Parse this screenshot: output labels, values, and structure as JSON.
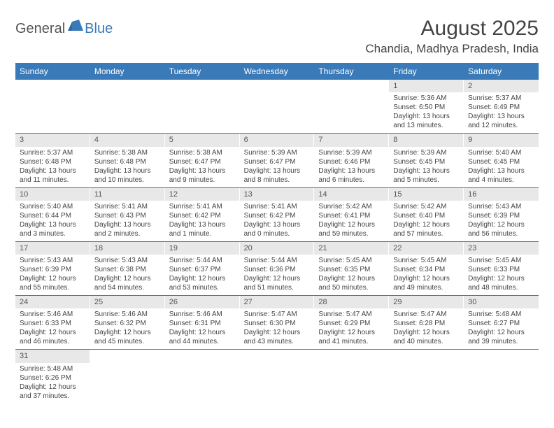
{
  "logo": {
    "general": "General",
    "blue": "Blue"
  },
  "title": "August 2025",
  "location": "Chandia, Madhya Pradesh, India",
  "colors": {
    "header_bg": "#3a7ab8",
    "header_text": "#ffffff",
    "daynum_bg": "#e8e8e8",
    "text": "#444444",
    "row_border": "#3a7ab8"
  },
  "day_headers": [
    "Sunday",
    "Monday",
    "Tuesday",
    "Wednesday",
    "Thursday",
    "Friday",
    "Saturday"
  ],
  "weeks": [
    [
      {
        "n": "",
        "sunrise": "",
        "sunset": "",
        "daylight": ""
      },
      {
        "n": "",
        "sunrise": "",
        "sunset": "",
        "daylight": ""
      },
      {
        "n": "",
        "sunrise": "",
        "sunset": "",
        "daylight": ""
      },
      {
        "n": "",
        "sunrise": "",
        "sunset": "",
        "daylight": ""
      },
      {
        "n": "",
        "sunrise": "",
        "sunset": "",
        "daylight": ""
      },
      {
        "n": "1",
        "sunrise": "Sunrise: 5:36 AM",
        "sunset": "Sunset: 6:50 PM",
        "daylight": "Daylight: 13 hours and 13 minutes."
      },
      {
        "n": "2",
        "sunrise": "Sunrise: 5:37 AM",
        "sunset": "Sunset: 6:49 PM",
        "daylight": "Daylight: 13 hours and 12 minutes."
      }
    ],
    [
      {
        "n": "3",
        "sunrise": "Sunrise: 5:37 AM",
        "sunset": "Sunset: 6:48 PM",
        "daylight": "Daylight: 13 hours and 11 minutes."
      },
      {
        "n": "4",
        "sunrise": "Sunrise: 5:38 AM",
        "sunset": "Sunset: 6:48 PM",
        "daylight": "Daylight: 13 hours and 10 minutes."
      },
      {
        "n": "5",
        "sunrise": "Sunrise: 5:38 AM",
        "sunset": "Sunset: 6:47 PM",
        "daylight": "Daylight: 13 hours and 9 minutes."
      },
      {
        "n": "6",
        "sunrise": "Sunrise: 5:39 AM",
        "sunset": "Sunset: 6:47 PM",
        "daylight": "Daylight: 13 hours and 8 minutes."
      },
      {
        "n": "7",
        "sunrise": "Sunrise: 5:39 AM",
        "sunset": "Sunset: 6:46 PM",
        "daylight": "Daylight: 13 hours and 6 minutes."
      },
      {
        "n": "8",
        "sunrise": "Sunrise: 5:39 AM",
        "sunset": "Sunset: 6:45 PM",
        "daylight": "Daylight: 13 hours and 5 minutes."
      },
      {
        "n": "9",
        "sunrise": "Sunrise: 5:40 AM",
        "sunset": "Sunset: 6:45 PM",
        "daylight": "Daylight: 13 hours and 4 minutes."
      }
    ],
    [
      {
        "n": "10",
        "sunrise": "Sunrise: 5:40 AM",
        "sunset": "Sunset: 6:44 PM",
        "daylight": "Daylight: 13 hours and 3 minutes."
      },
      {
        "n": "11",
        "sunrise": "Sunrise: 5:41 AM",
        "sunset": "Sunset: 6:43 PM",
        "daylight": "Daylight: 13 hours and 2 minutes."
      },
      {
        "n": "12",
        "sunrise": "Sunrise: 5:41 AM",
        "sunset": "Sunset: 6:42 PM",
        "daylight": "Daylight: 13 hours and 1 minute."
      },
      {
        "n": "13",
        "sunrise": "Sunrise: 5:41 AM",
        "sunset": "Sunset: 6:42 PM",
        "daylight": "Daylight: 13 hours and 0 minutes."
      },
      {
        "n": "14",
        "sunrise": "Sunrise: 5:42 AM",
        "sunset": "Sunset: 6:41 PM",
        "daylight": "Daylight: 12 hours and 59 minutes."
      },
      {
        "n": "15",
        "sunrise": "Sunrise: 5:42 AM",
        "sunset": "Sunset: 6:40 PM",
        "daylight": "Daylight: 12 hours and 57 minutes."
      },
      {
        "n": "16",
        "sunrise": "Sunrise: 5:43 AM",
        "sunset": "Sunset: 6:39 PM",
        "daylight": "Daylight: 12 hours and 56 minutes."
      }
    ],
    [
      {
        "n": "17",
        "sunrise": "Sunrise: 5:43 AM",
        "sunset": "Sunset: 6:39 PM",
        "daylight": "Daylight: 12 hours and 55 minutes."
      },
      {
        "n": "18",
        "sunrise": "Sunrise: 5:43 AM",
        "sunset": "Sunset: 6:38 PM",
        "daylight": "Daylight: 12 hours and 54 minutes."
      },
      {
        "n": "19",
        "sunrise": "Sunrise: 5:44 AM",
        "sunset": "Sunset: 6:37 PM",
        "daylight": "Daylight: 12 hours and 53 minutes."
      },
      {
        "n": "20",
        "sunrise": "Sunrise: 5:44 AM",
        "sunset": "Sunset: 6:36 PM",
        "daylight": "Daylight: 12 hours and 51 minutes."
      },
      {
        "n": "21",
        "sunrise": "Sunrise: 5:45 AM",
        "sunset": "Sunset: 6:35 PM",
        "daylight": "Daylight: 12 hours and 50 minutes."
      },
      {
        "n": "22",
        "sunrise": "Sunrise: 5:45 AM",
        "sunset": "Sunset: 6:34 PM",
        "daylight": "Daylight: 12 hours and 49 minutes."
      },
      {
        "n": "23",
        "sunrise": "Sunrise: 5:45 AM",
        "sunset": "Sunset: 6:33 PM",
        "daylight": "Daylight: 12 hours and 48 minutes."
      }
    ],
    [
      {
        "n": "24",
        "sunrise": "Sunrise: 5:46 AM",
        "sunset": "Sunset: 6:33 PM",
        "daylight": "Daylight: 12 hours and 46 minutes."
      },
      {
        "n": "25",
        "sunrise": "Sunrise: 5:46 AM",
        "sunset": "Sunset: 6:32 PM",
        "daylight": "Daylight: 12 hours and 45 minutes."
      },
      {
        "n": "26",
        "sunrise": "Sunrise: 5:46 AM",
        "sunset": "Sunset: 6:31 PM",
        "daylight": "Daylight: 12 hours and 44 minutes."
      },
      {
        "n": "27",
        "sunrise": "Sunrise: 5:47 AM",
        "sunset": "Sunset: 6:30 PM",
        "daylight": "Daylight: 12 hours and 43 minutes."
      },
      {
        "n": "28",
        "sunrise": "Sunrise: 5:47 AM",
        "sunset": "Sunset: 6:29 PM",
        "daylight": "Daylight: 12 hours and 41 minutes."
      },
      {
        "n": "29",
        "sunrise": "Sunrise: 5:47 AM",
        "sunset": "Sunset: 6:28 PM",
        "daylight": "Daylight: 12 hours and 40 minutes."
      },
      {
        "n": "30",
        "sunrise": "Sunrise: 5:48 AM",
        "sunset": "Sunset: 6:27 PM",
        "daylight": "Daylight: 12 hours and 39 minutes."
      }
    ],
    [
      {
        "n": "31",
        "sunrise": "Sunrise: 5:48 AM",
        "sunset": "Sunset: 6:26 PM",
        "daylight": "Daylight: 12 hours and 37 minutes."
      },
      {
        "n": "",
        "sunrise": "",
        "sunset": "",
        "daylight": ""
      },
      {
        "n": "",
        "sunrise": "",
        "sunset": "",
        "daylight": ""
      },
      {
        "n": "",
        "sunrise": "",
        "sunset": "",
        "daylight": ""
      },
      {
        "n": "",
        "sunrise": "",
        "sunset": "",
        "daylight": ""
      },
      {
        "n": "",
        "sunrise": "",
        "sunset": "",
        "daylight": ""
      },
      {
        "n": "",
        "sunrise": "",
        "sunset": "",
        "daylight": ""
      }
    ]
  ]
}
